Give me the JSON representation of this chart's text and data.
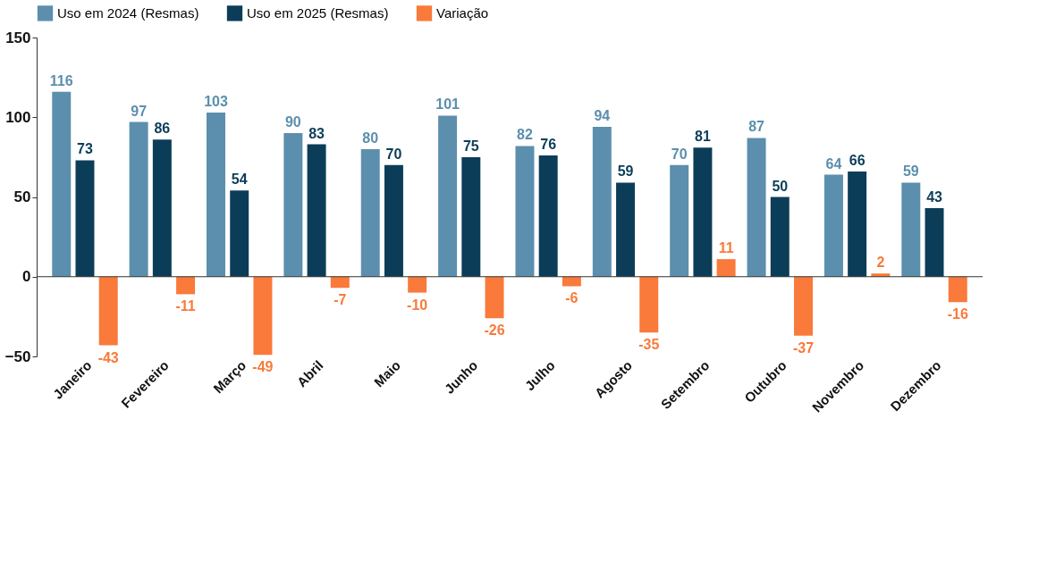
{
  "chart_data": {
    "type": "bar",
    "categories": [
      "Janeiro",
      "Fevereiro",
      "Março",
      "Abril",
      "Maio",
      "Junho",
      "Julho",
      "Agosto",
      "Setembro",
      "Outubro",
      "Novembro",
      "Dezembro"
    ],
    "series": [
      {
        "name": "Uso em 2024 (Resmas)",
        "color": "#5b8fad",
        "values": [
          116,
          97,
          103,
          90,
          80,
          101,
          82,
          94,
          70,
          87,
          64,
          59
        ]
      },
      {
        "name": "Uso em 2025 (Resmas)",
        "color": "#0b3d58",
        "values": [
          73,
          86,
          54,
          83,
          70,
          75,
          76,
          59,
          81,
          50,
          66,
          43
        ]
      },
      {
        "name": "Variação",
        "color": "#f97a3a",
        "values": [
          -43,
          -11,
          -49,
          -7,
          -10,
          -26,
          -6,
          -35,
          11,
          -37,
          2,
          -16
        ]
      }
    ],
    "ylim": [
      -50,
      150
    ],
    "yticks": [
      -50,
      0,
      50,
      100,
      150
    ],
    "grid": false,
    "legend": "top",
    "data_labels": true,
    "ref_lines": [
      {
        "axis": "y",
        "value": 0,
        "color": "#333333"
      }
    ]
  }
}
